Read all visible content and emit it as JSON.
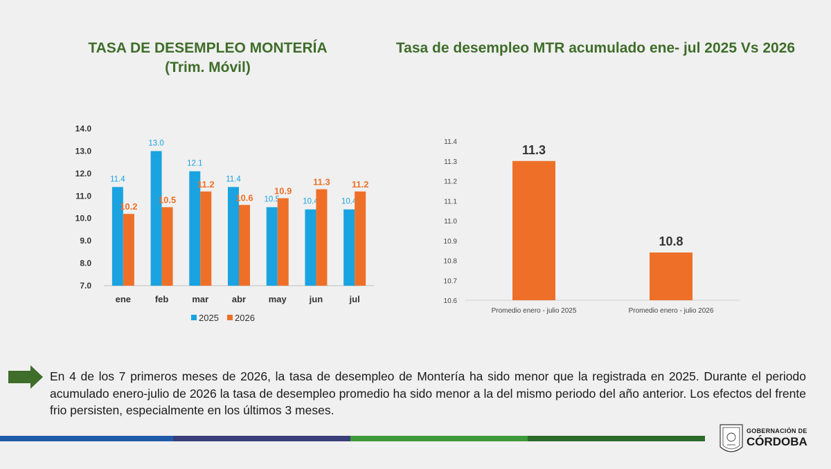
{
  "chart_data": [
    {
      "type": "bar",
      "title": "TASA DE DESEMPLEO MONTERÍA",
      "subtitle": "(Trim. Móvil)",
      "categories": [
        "ene",
        "feb",
        "mar",
        "abr",
        "may",
        "jun",
        "jul"
      ],
      "series": [
        {
          "name": "2025",
          "color": "#1aa3e0",
          "values": [
            11.4,
            13.0,
            12.1,
            11.4,
            10.5,
            10.4,
            10.4
          ],
          "labels": [
            "11.4",
            "13.0",
            "12.1",
            "11.4",
            "10.5",
            "10.4",
            "10.4"
          ]
        },
        {
          "name": "2026",
          "color": "#ee7028",
          "values": [
            10.2,
            10.5,
            11.2,
            10.6,
            10.9,
            11.3,
            11.2
          ],
          "labels": [
            "10.2",
            "10.5",
            "11.2",
            "10.6",
            "10.9",
            "11.3",
            "11.2"
          ]
        }
      ],
      "ylim": [
        7.0,
        14.0
      ],
      "yticks": [
        "7.0",
        "8.0",
        "9.0",
        "10.0",
        "11.0",
        "12.0",
        "13.0",
        "14.0"
      ],
      "legend": "bottom",
      "grid": false
    },
    {
      "type": "bar",
      "title": "Tasa de desempleo MTR acumulado ene- jul 2025 Vs 2026",
      "categories": [
        "Promedio enero - julio 2025",
        "Promedio enero - julio 2026"
      ],
      "values": [
        11.3,
        10.84
      ],
      "labels": [
        "11.3",
        "10.8"
      ],
      "color": "#ee7028",
      "ylim": [
        10.6,
        11.4
      ],
      "yticks": [
        "10.6",
        "10.7",
        "10.8",
        "10.9",
        "11.0",
        "11.1",
        "11.2",
        "11.3",
        "11.4"
      ],
      "grid": false
    }
  ],
  "description": "En 4 de los 7 primeros meses de 2026, la tasa de desempleo de Montería ha sido menor que la registrada en 2025. Durante el periodo acumulado enero-julio de 2026 la tasa de desempleo promedio ha sido menor a la del mismo periodo del año anterior. Los efectos del frente frio persisten, especialmente en los últimos 3 meses.",
  "logo": {
    "line1": "GOBERNACIÓN DE",
    "line2": "CÓRDOBA"
  },
  "bands": [
    "#1f5ba8",
    "#3a3f7a",
    "#3d9a3a",
    "#2c6b2c"
  ]
}
